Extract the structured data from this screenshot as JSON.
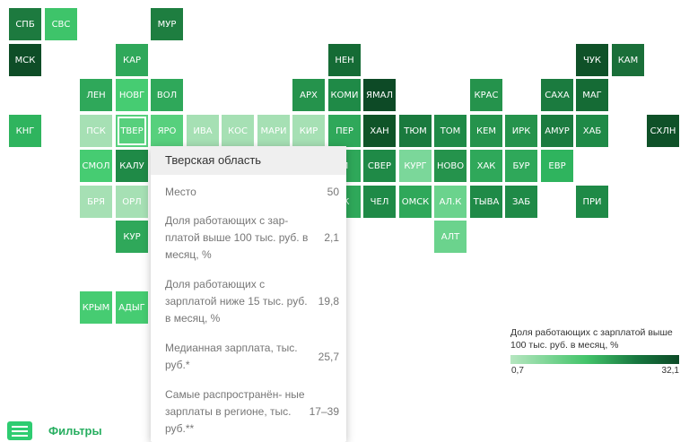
{
  "regions": [
    {
      "label": "СПБ",
      "color": "#1d7a3f",
      "c": 0,
      "r": 0
    },
    {
      "label": "СВС",
      "color": "#3ec46a",
      "c": 1,
      "r": 0
    },
    {
      "label": "МУР",
      "color": "#1e7e40",
      "c": 4,
      "r": 0
    },
    {
      "label": "МСК",
      "color": "#0e4d27",
      "c": 0,
      "r": 1
    },
    {
      "label": "КАР",
      "color": "#2fa85a",
      "c": 3,
      "r": 1
    },
    {
      "label": "НЕН",
      "color": "#156b35",
      "c": 9,
      "r": 1
    },
    {
      "label": "ЧУК",
      "color": "#0f5128",
      "c": 16,
      "r": 1
    },
    {
      "label": "КАМ",
      "color": "#1a6f39",
      "c": 17,
      "r": 1
    },
    {
      "label": "ЛЕН",
      "color": "#2fa85a",
      "c": 2,
      "r": 2
    },
    {
      "label": "НОВГ",
      "color": "#46cc72",
      "c": 3,
      "r": 2
    },
    {
      "label": "ВОЛ",
      "color": "#2fa85a",
      "c": 4,
      "r": 2
    },
    {
      "label": "АРХ",
      "color": "#25934c",
      "c": 8,
      "r": 2
    },
    {
      "label": "КОМИ",
      "color": "#1f8a47",
      "c": 9,
      "r": 2
    },
    {
      "label": "ЯМАЛ",
      "color": "#0d4a26",
      "c": 10,
      "r": 2
    },
    {
      "label": "КРАС",
      "color": "#25934c",
      "c": 13,
      "r": 2
    },
    {
      "label": "САХА",
      "color": "#1b7b3f",
      "c": 15,
      "r": 2
    },
    {
      "label": "МАГ",
      "color": "#156b35",
      "c": 16,
      "r": 2
    },
    {
      "label": "КНГ",
      "color": "#2fb45e",
      "c": 0,
      "r": 3
    },
    {
      "label": "ПСК",
      "color": "#a6e0b4",
      "c": 2,
      "r": 3
    },
    {
      "label": "ТВЕР",
      "color": "#57d07d",
      "c": 3,
      "r": 3,
      "selected": true
    },
    {
      "label": "ЯРО",
      "color": "#57d07d",
      "c": 4,
      "r": 3
    },
    {
      "label": "ИВА",
      "color": "#a6e0b4",
      "c": 5,
      "r": 3
    },
    {
      "label": "КОС",
      "color": "#a6e0b4",
      "c": 6,
      "r": 3
    },
    {
      "label": "МАРИ",
      "color": "#a6e0b4",
      "c": 7,
      "r": 3
    },
    {
      "label": "КИР",
      "color": "#a6e0b4",
      "c": 8,
      "r": 3
    },
    {
      "label": "ПЕР",
      "color": "#2fa85a",
      "c": 9,
      "r": 3
    },
    {
      "label": "ХАН",
      "color": "#0f5428",
      "c": 10,
      "r": 3
    },
    {
      "label": "ТЮМ",
      "color": "#1a7a3e",
      "c": 11,
      "r": 3
    },
    {
      "label": "ТОМ",
      "color": "#1f8a47",
      "c": 12,
      "r": 3
    },
    {
      "label": "КЕМ",
      "color": "#25934c",
      "c": 13,
      "r": 3
    },
    {
      "label": "ИРК",
      "color": "#25934c",
      "c": 14,
      "r": 3
    },
    {
      "label": "АМУР",
      "color": "#1b7b3f",
      "c": 15,
      "r": 3
    },
    {
      "label": "ХАБ",
      "color": "#1f8a47",
      "c": 16,
      "r": 3
    },
    {
      "label": "СХЛН",
      "color": "#0f5128",
      "c": 18,
      "r": 3
    },
    {
      "label": "СМОЛ",
      "color": "#46cc72",
      "c": 2,
      "r": 4
    },
    {
      "label": "КАЛУ",
      "color": "#1f8a47",
      "c": 3,
      "r": 4
    },
    {
      "label": "СВЕР",
      "color": "#1f8a47",
      "c": 10,
      "r": 4
    },
    {
      "label": "КУРГ",
      "color": "#7bd79a",
      "c": 11,
      "r": 4
    },
    {
      "label": "НОВО",
      "color": "#25934c",
      "c": 12,
      "r": 4
    },
    {
      "label": "ХАК",
      "color": "#2fa85a",
      "c": 13,
      "r": 4
    },
    {
      "label": "БУР",
      "color": "#2fa85a",
      "c": 14,
      "r": 4
    },
    {
      "label": "ЕВР",
      "color": "#2fb45e",
      "c": 15,
      "r": 4
    },
    {
      "label": "БРЯ",
      "color": "#a6e0b4",
      "c": 2,
      "r": 5
    },
    {
      "label": "ОРЛ",
      "color": "#a6e0b4",
      "c": 3,
      "r": 5
    },
    {
      "label": "ЧЕЛ",
      "color": "#1f8a47",
      "c": 10,
      "r": 5
    },
    {
      "label": "ОМСК",
      "color": "#2fa85a",
      "c": 11,
      "r": 5
    },
    {
      "label": "АЛ.К",
      "color": "#6bd38d",
      "c": 12,
      "r": 5
    },
    {
      "label": "ТЫВА",
      "color": "#1f8a47",
      "c": 13,
      "r": 5
    },
    {
      "label": "ЗАБ",
      "color": "#1f8a47",
      "c": 14,
      "r": 5
    },
    {
      "label": "ПРИ",
      "color": "#1f8a47",
      "c": 16,
      "r": 5
    },
    {
      "label": "КУР",
      "color": "#2fa85a",
      "c": 3,
      "r": 6
    },
    {
      "label": "АЛТ",
      "color": "#6bd38d",
      "c": 12,
      "r": 6
    },
    {
      "label": "КРЫМ",
      "color": "#46cc72",
      "c": 2,
      "r": 8
    },
    {
      "label": "АДЫГ",
      "color": "#46cc72",
      "c": 3,
      "r": 8
    }
  ],
  "partial_tiles": [
    {
      "label": "",
      "color": "#46cc72",
      "c": 4,
      "r": 4
    },
    {
      "label": "",
      "color": "#46cc72",
      "c": 4,
      "r": 5
    },
    {
      "label": "",
      "color": "#46cc72",
      "c": 4,
      "r": 6
    },
    {
      "label": "",
      "color": "#46cc72",
      "c": 4,
      "r": 7
    },
    {
      "label": "",
      "color": "#46cc72",
      "c": 4,
      "r": 8
    },
    {
      "label": "",
      "color": "#a6e0b4",
      "c": 4,
      "r": 9
    },
    {
      "label": "",
      "color": "#46cc72",
      "c": 4,
      "r": 10
    },
    {
      "label": "М",
      "color": "#2fa85a",
      "c": 9,
      "r": 4
    },
    {
      "label": "Ж",
      "color": "#2fa85a",
      "c": 9,
      "r": 5
    }
  ],
  "tooltip": {
    "title": "Тверская область",
    "rows": [
      {
        "label": "Место",
        "value": "50"
      },
      {
        "label": "Доля работающих с зар- платой выше 100 тыс. руб. в месяц, %",
        "value": "2,1"
      },
      {
        "label": "Доля работающих с зарплатой ниже 15 тыс. руб. в месяц, %",
        "value": "19,8"
      },
      {
        "label": "Медианная зарплата, тыс. руб.*",
        "value": "25,7"
      },
      {
        "label": "Самые распространён- ные зарплаты в регионе, тыс. руб.**",
        "value": "17–39"
      }
    ]
  },
  "legend": {
    "title": "Доля работающих с зарплатой выше 100 тыс. руб. в месяц, %",
    "min": "0,7",
    "max": "32,1"
  },
  "filters": {
    "label": "Фильтры",
    "icon": "filter-sliders-icon",
    "color": "#2ecc71"
  }
}
